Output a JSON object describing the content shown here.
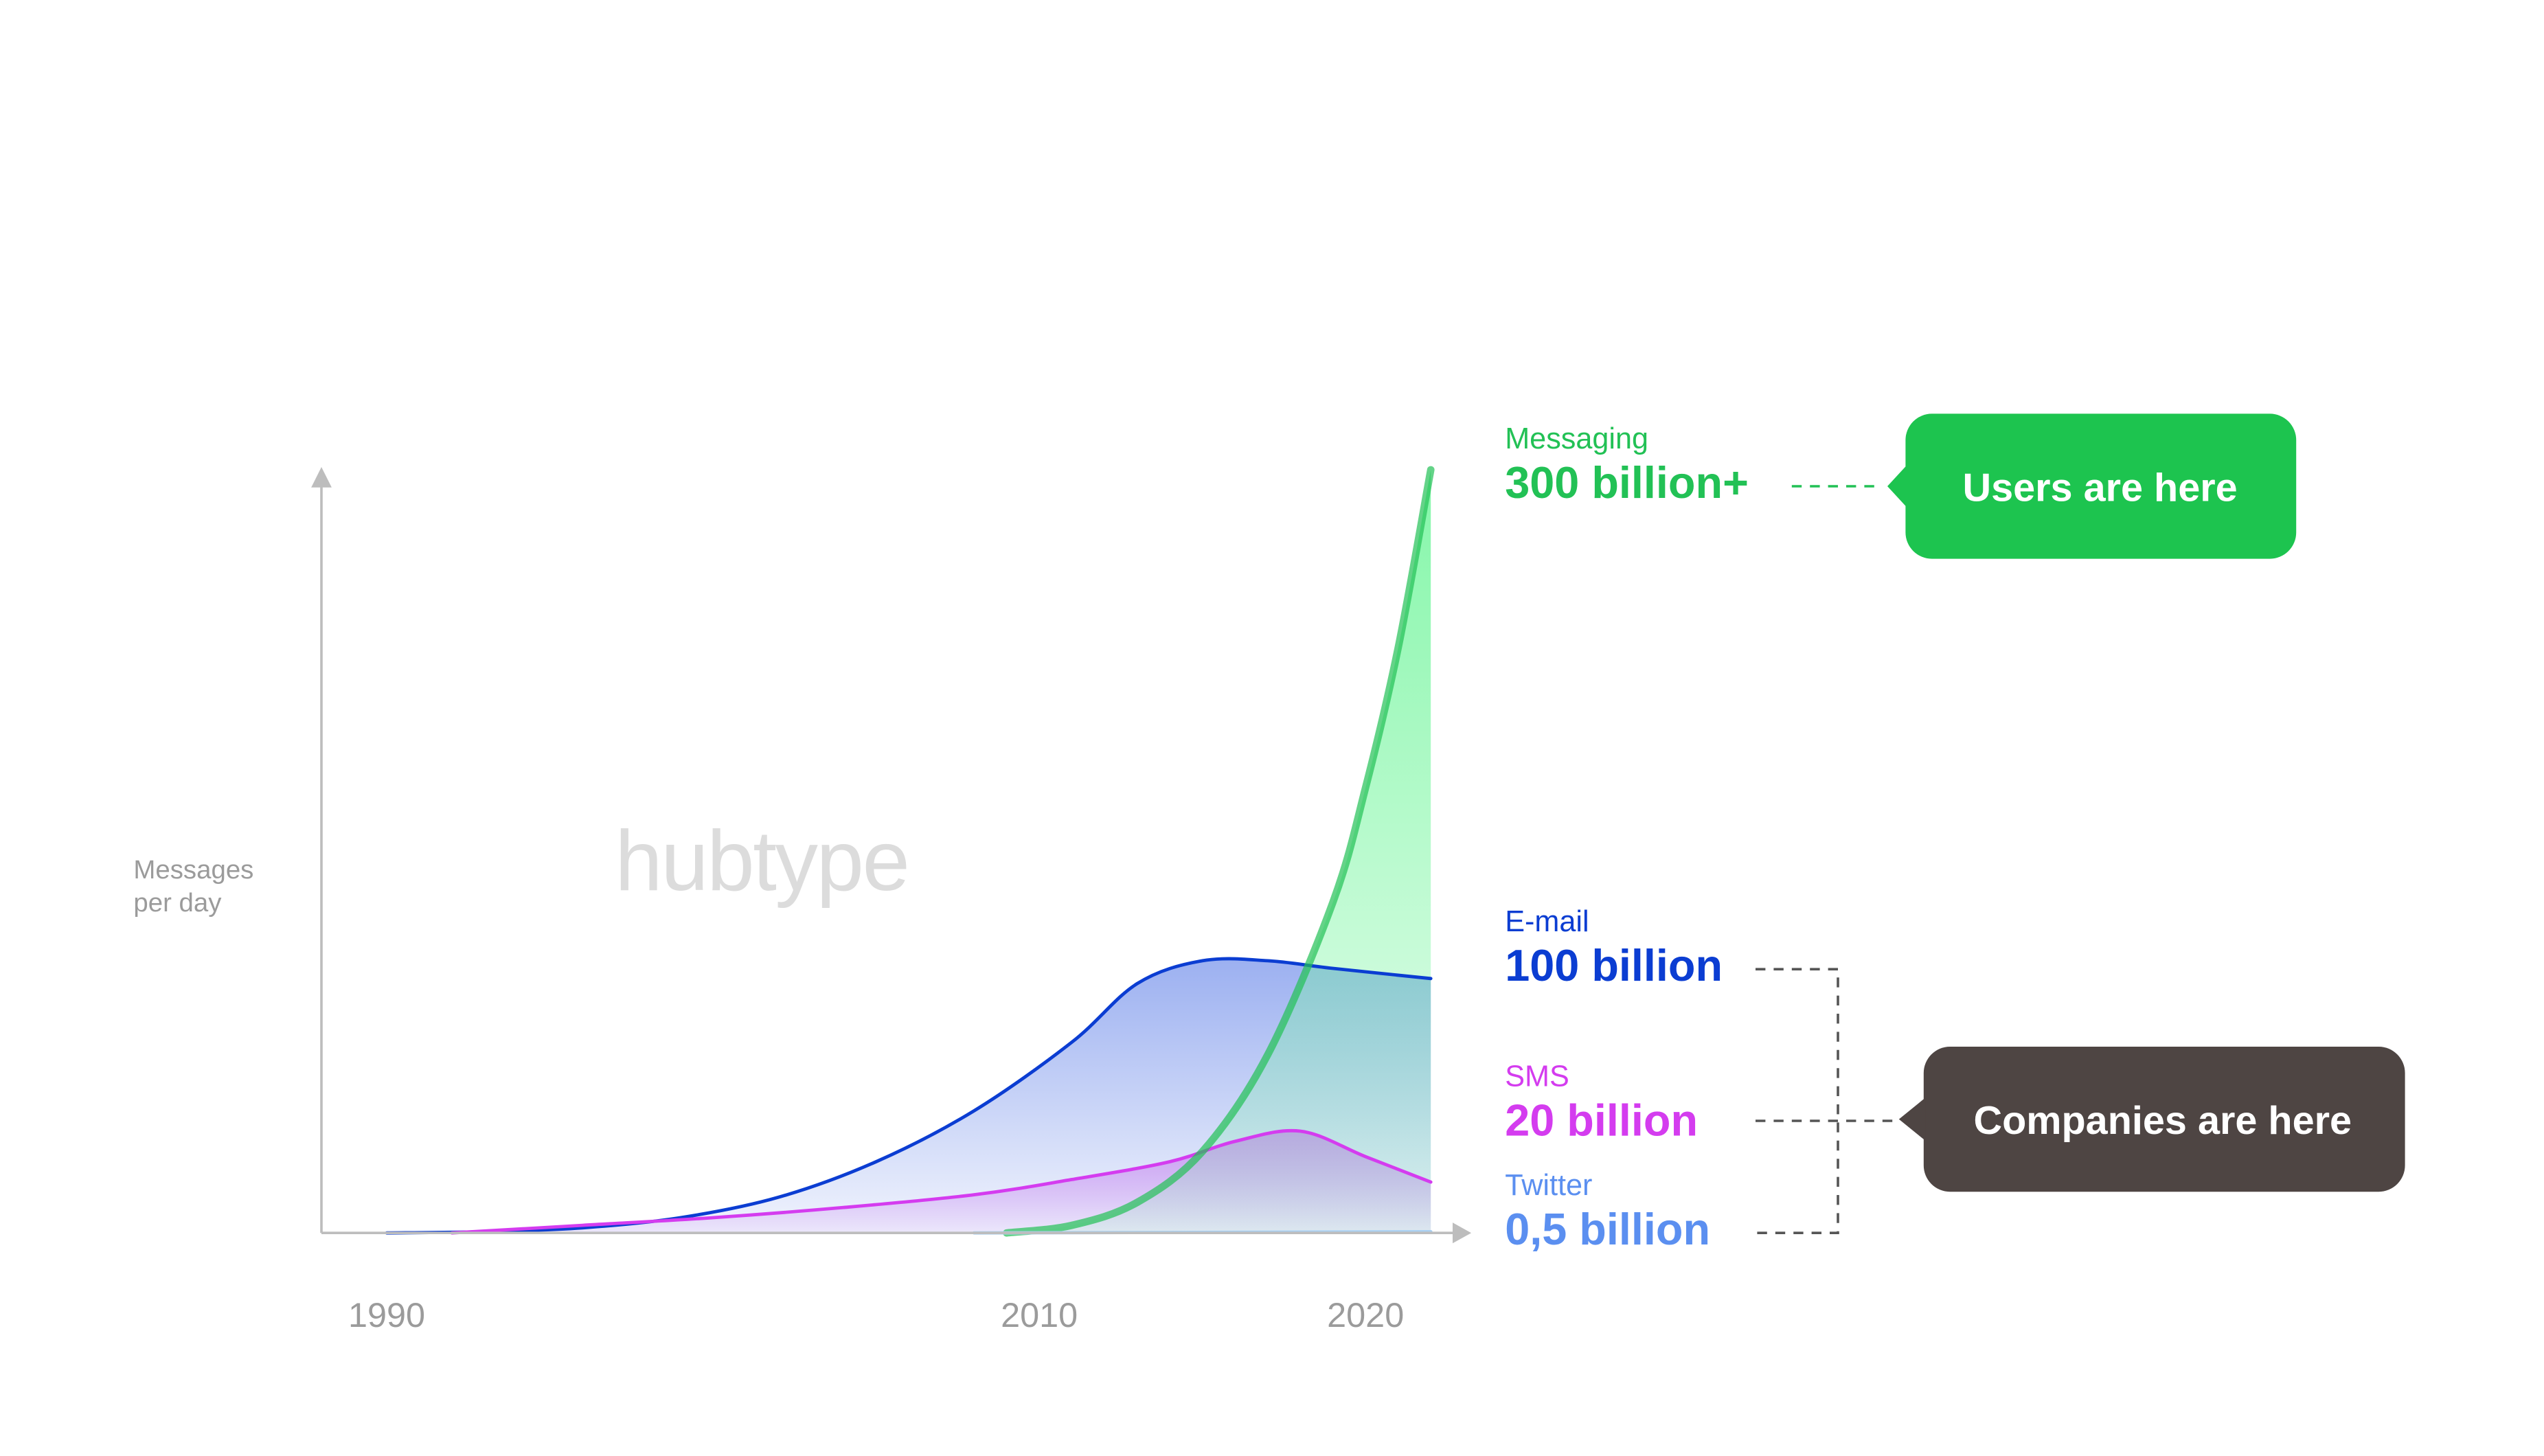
{
  "chart_data": {
    "type": "area",
    "ylabel": [
      "Messages",
      "per day"
    ],
    "watermark": "hubtype",
    "xlim": [
      1988,
      2022
    ],
    "xticks": [
      1990,
      2010,
      2020
    ],
    "ylim": [
      0,
      300
    ],
    "series": [
      {
        "name": "E-mail",
        "label": "100 billion",
        "color": "#0b3dd2",
        "fill": "#8aa2ee",
        "x": [
          1990,
          1993,
          1996,
          1999,
          2002,
          2005,
          2008,
          2011,
          2013,
          2015,
          2017,
          2019,
          2022
        ],
        "values": [
          0,
          0.5,
          2,
          6,
          14,
          28,
          48,
          75,
          98,
          107,
          107,
          104,
          100
        ]
      },
      {
        "name": "SMS",
        "label": "20 billion",
        "color": "#d43cef",
        "fill": "#c98af0",
        "x": [
          1992,
          1996,
          2000,
          2004,
          2008,
          2011,
          2014,
          2016,
          2018,
          2020,
          2022
        ],
        "values": [
          0,
          3,
          6,
          10,
          15,
          21,
          28,
          36,
          40,
          30,
          20
        ]
      },
      {
        "name": "Messaging",
        "label": "300 billion+",
        "color": "#22c155",
        "fill": "#6ff59a",
        "x": [
          2009,
          2011,
          2013,
          2015,
          2017,
          2019,
          2020,
          2021,
          2022
        ],
        "values": [
          0,
          3,
          12,
          32,
          70,
          130,
          175,
          230,
          300
        ]
      },
      {
        "name": "Twitter",
        "label": "0,5 billion",
        "color": "#5b8ff0",
        "fill": "#a9d0f3",
        "x": [
          2008,
          2014,
          2022
        ],
        "values": [
          0,
          0.2,
          0.5
        ]
      }
    ],
    "annotations": [
      "Users are here",
      "Companies are here"
    ]
  }
}
